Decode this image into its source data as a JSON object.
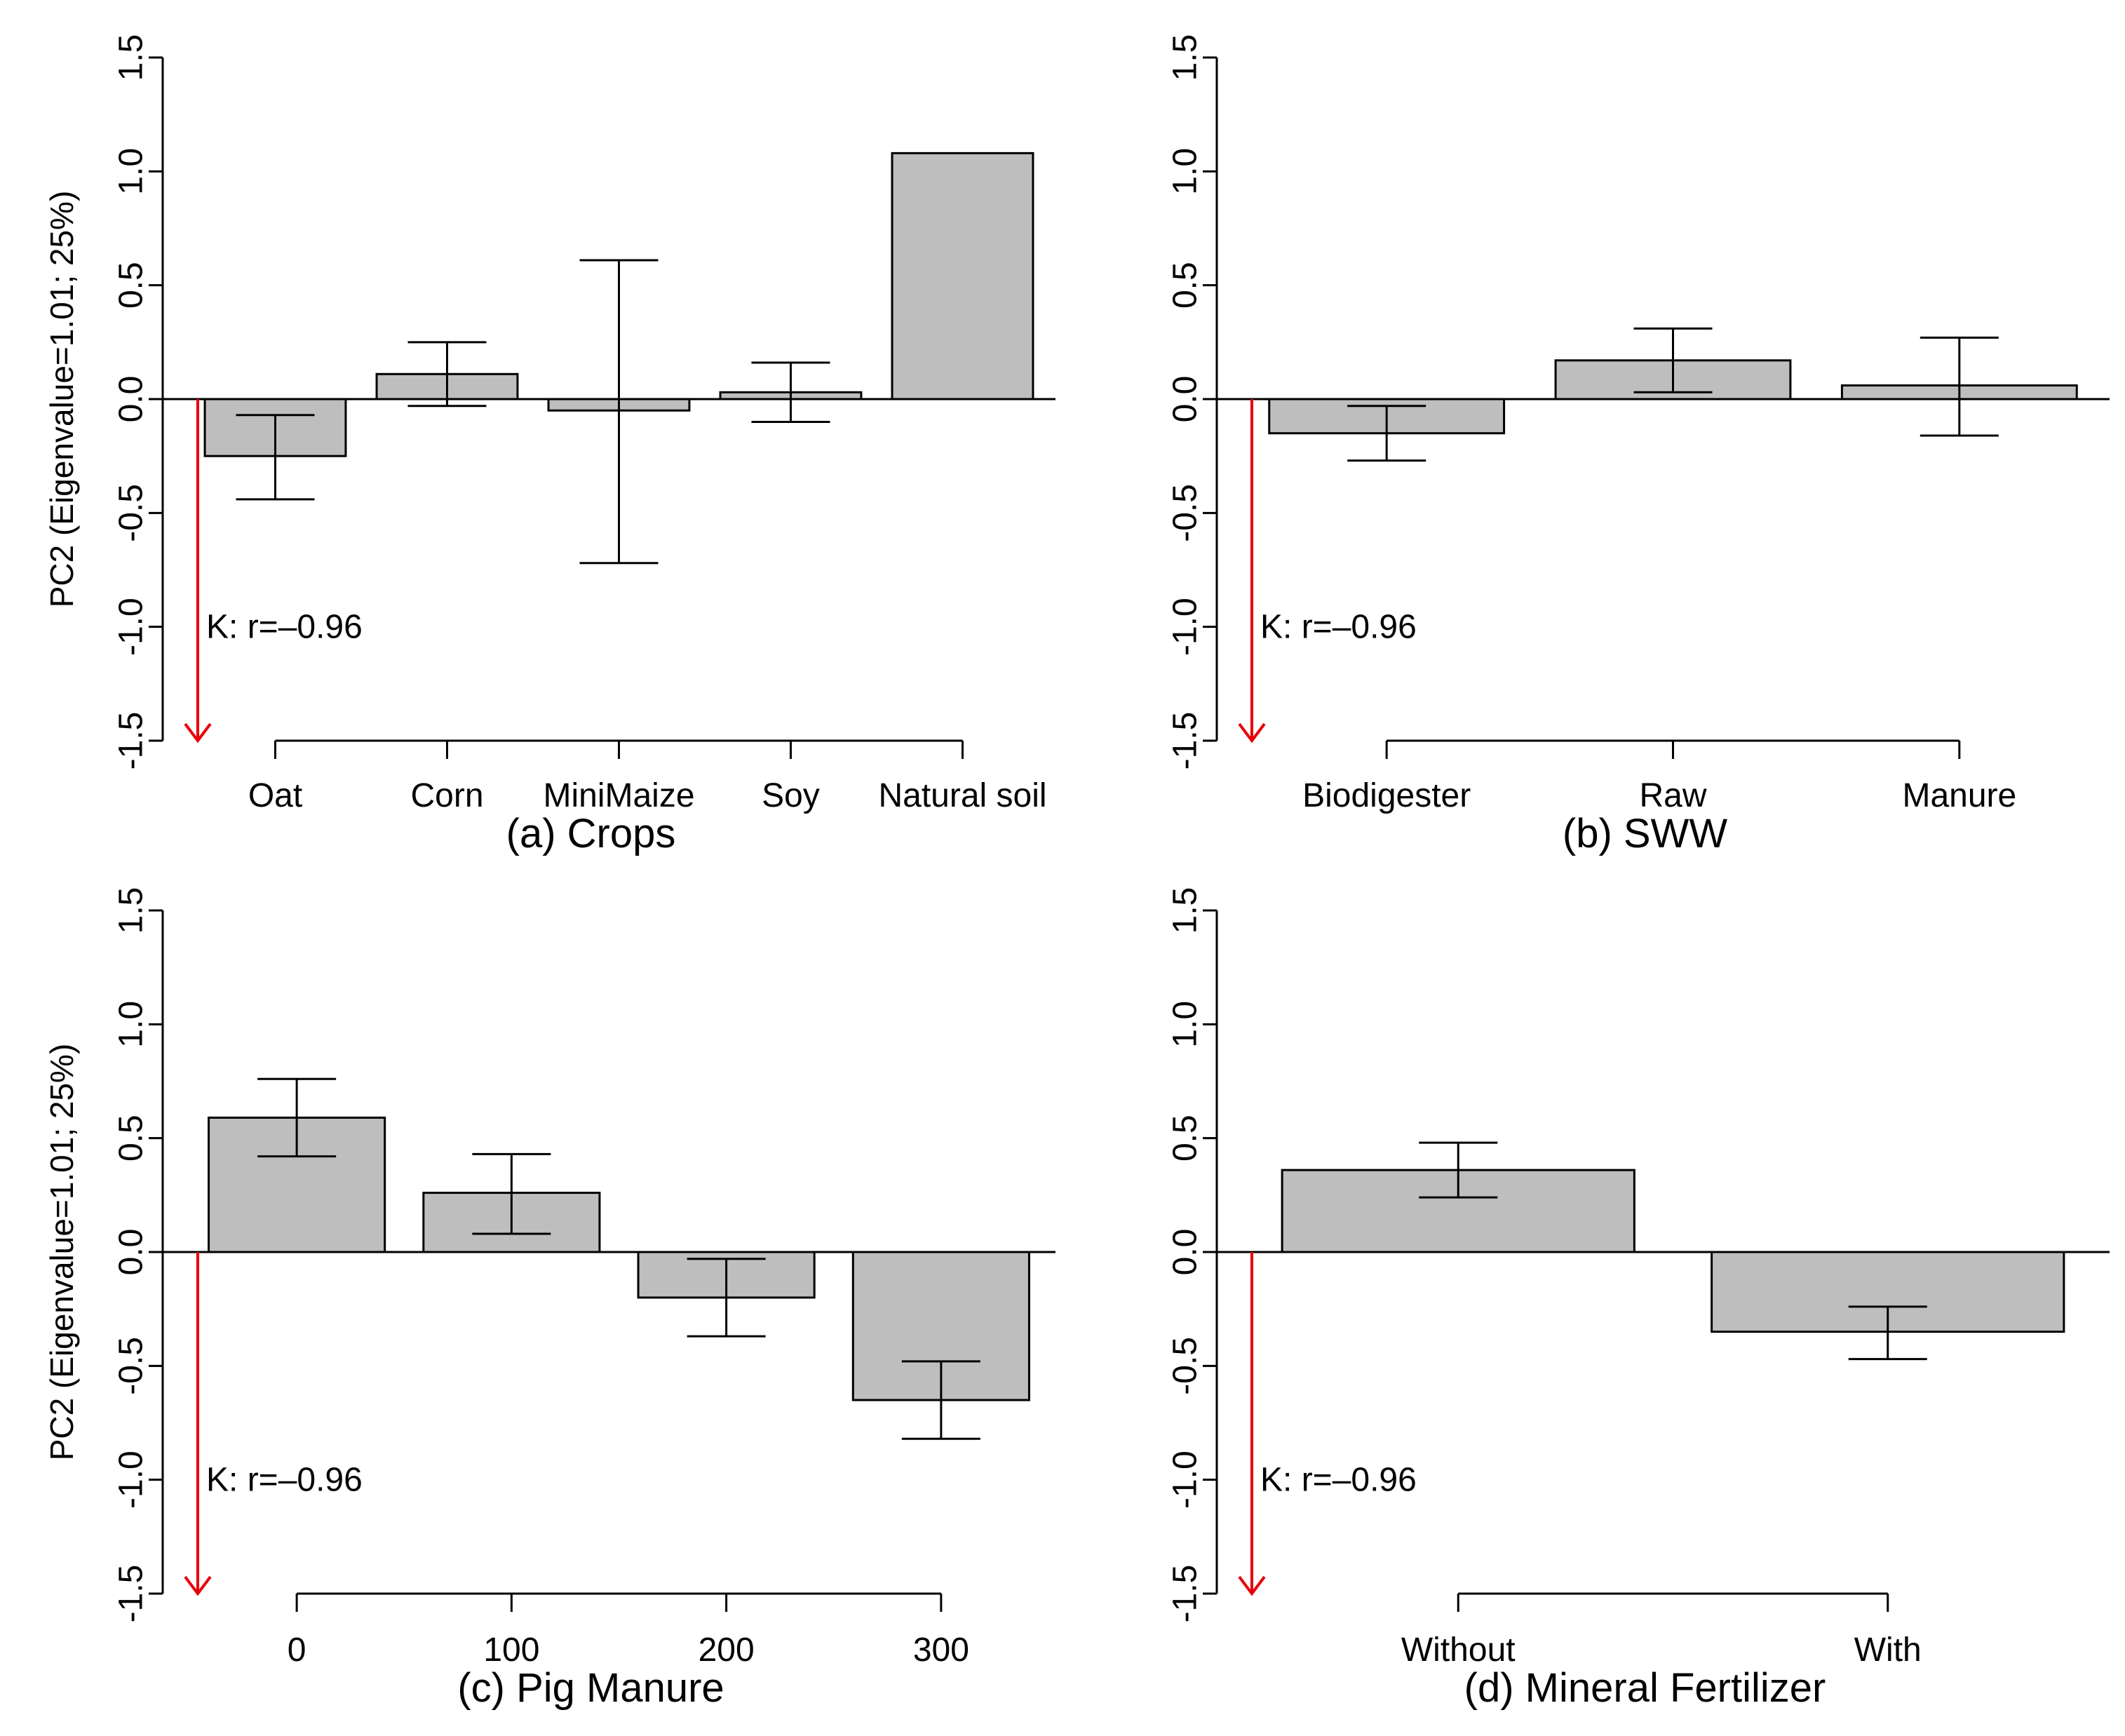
{
  "colors": {
    "bar_fill": "#bebebe",
    "bar_stroke": "#000000",
    "axis": "#000000",
    "arrow": "#e8000b"
  },
  "shared": {
    "ylabel": "PC2 (Eigenvalue=1.01; 25%)",
    "ylim": [
      -1.5,
      1.5
    ],
    "yticks": [
      -1.5,
      -1.0,
      -0.5,
      0.0,
      0.5,
      1.0,
      1.5
    ],
    "ytick_labels": [
      "-1.5",
      "-1.0",
      "-0.5",
      "0.0",
      "0.5",
      "1.0",
      "1.5"
    ],
    "arrow_label": "K: r=–0.96",
    "arrow_from": 0.0,
    "arrow_to": -1.5
  },
  "chart_data": [
    {
      "type": "bar",
      "title": "(a) Crops",
      "ylabel": "PC2 (Eigenvalue=1.01; 25%)",
      "show_ylabel": true,
      "categories": [
        "Oat",
        "Corn",
        "MiniMaize",
        "Soy",
        "Natural soil"
      ],
      "values": [
        -0.25,
        0.11,
        -0.05,
        0.03,
        1.08
      ],
      "err_low": [
        -0.44,
        -0.03,
        -0.72,
        -0.1,
        null
      ],
      "err_high": [
        -0.07,
        0.25,
        0.61,
        0.16,
        null
      ],
      "ylim": [
        -1.5,
        1.5
      ],
      "arrow_label": "K: r=–0.96"
    },
    {
      "type": "bar",
      "title": "(b) SWW",
      "ylabel": "",
      "show_ylabel": false,
      "categories": [
        "Biodigester",
        "Raw",
        "Manure"
      ],
      "values": [
        -0.15,
        0.17,
        0.06
      ],
      "err_low": [
        -0.27,
        0.03,
        -0.16
      ],
      "err_high": [
        -0.03,
        0.31,
        0.27
      ],
      "ylim": [
        -1.5,
        1.5
      ],
      "arrow_label": "K: r=–0.96"
    },
    {
      "type": "bar",
      "title": "(c) Pig Manure",
      "ylabel": "PC2 (Eigenvalue=1.01; 25%)",
      "show_ylabel": true,
      "categories": [
        "0",
        "100",
        "200",
        "300"
      ],
      "values": [
        0.59,
        0.26,
        -0.2,
        -0.65
      ],
      "err_low": [
        0.42,
        0.08,
        -0.37,
        -0.82
      ],
      "err_high": [
        0.76,
        0.43,
        -0.03,
        -0.48
      ],
      "ylim": [
        -1.5,
        1.5
      ],
      "arrow_label": "K: r=–0.96"
    },
    {
      "type": "bar",
      "title": "(d) Mineral Fertilizer",
      "ylabel": "",
      "show_ylabel": false,
      "categories": [
        "Without",
        "With"
      ],
      "values": [
        0.36,
        -0.35
      ],
      "err_low": [
        0.24,
        -0.47
      ],
      "err_high": [
        0.48,
        -0.24
      ],
      "ylim": [
        -1.5,
        1.5
      ],
      "arrow_label": "K: r=–0.96"
    }
  ]
}
